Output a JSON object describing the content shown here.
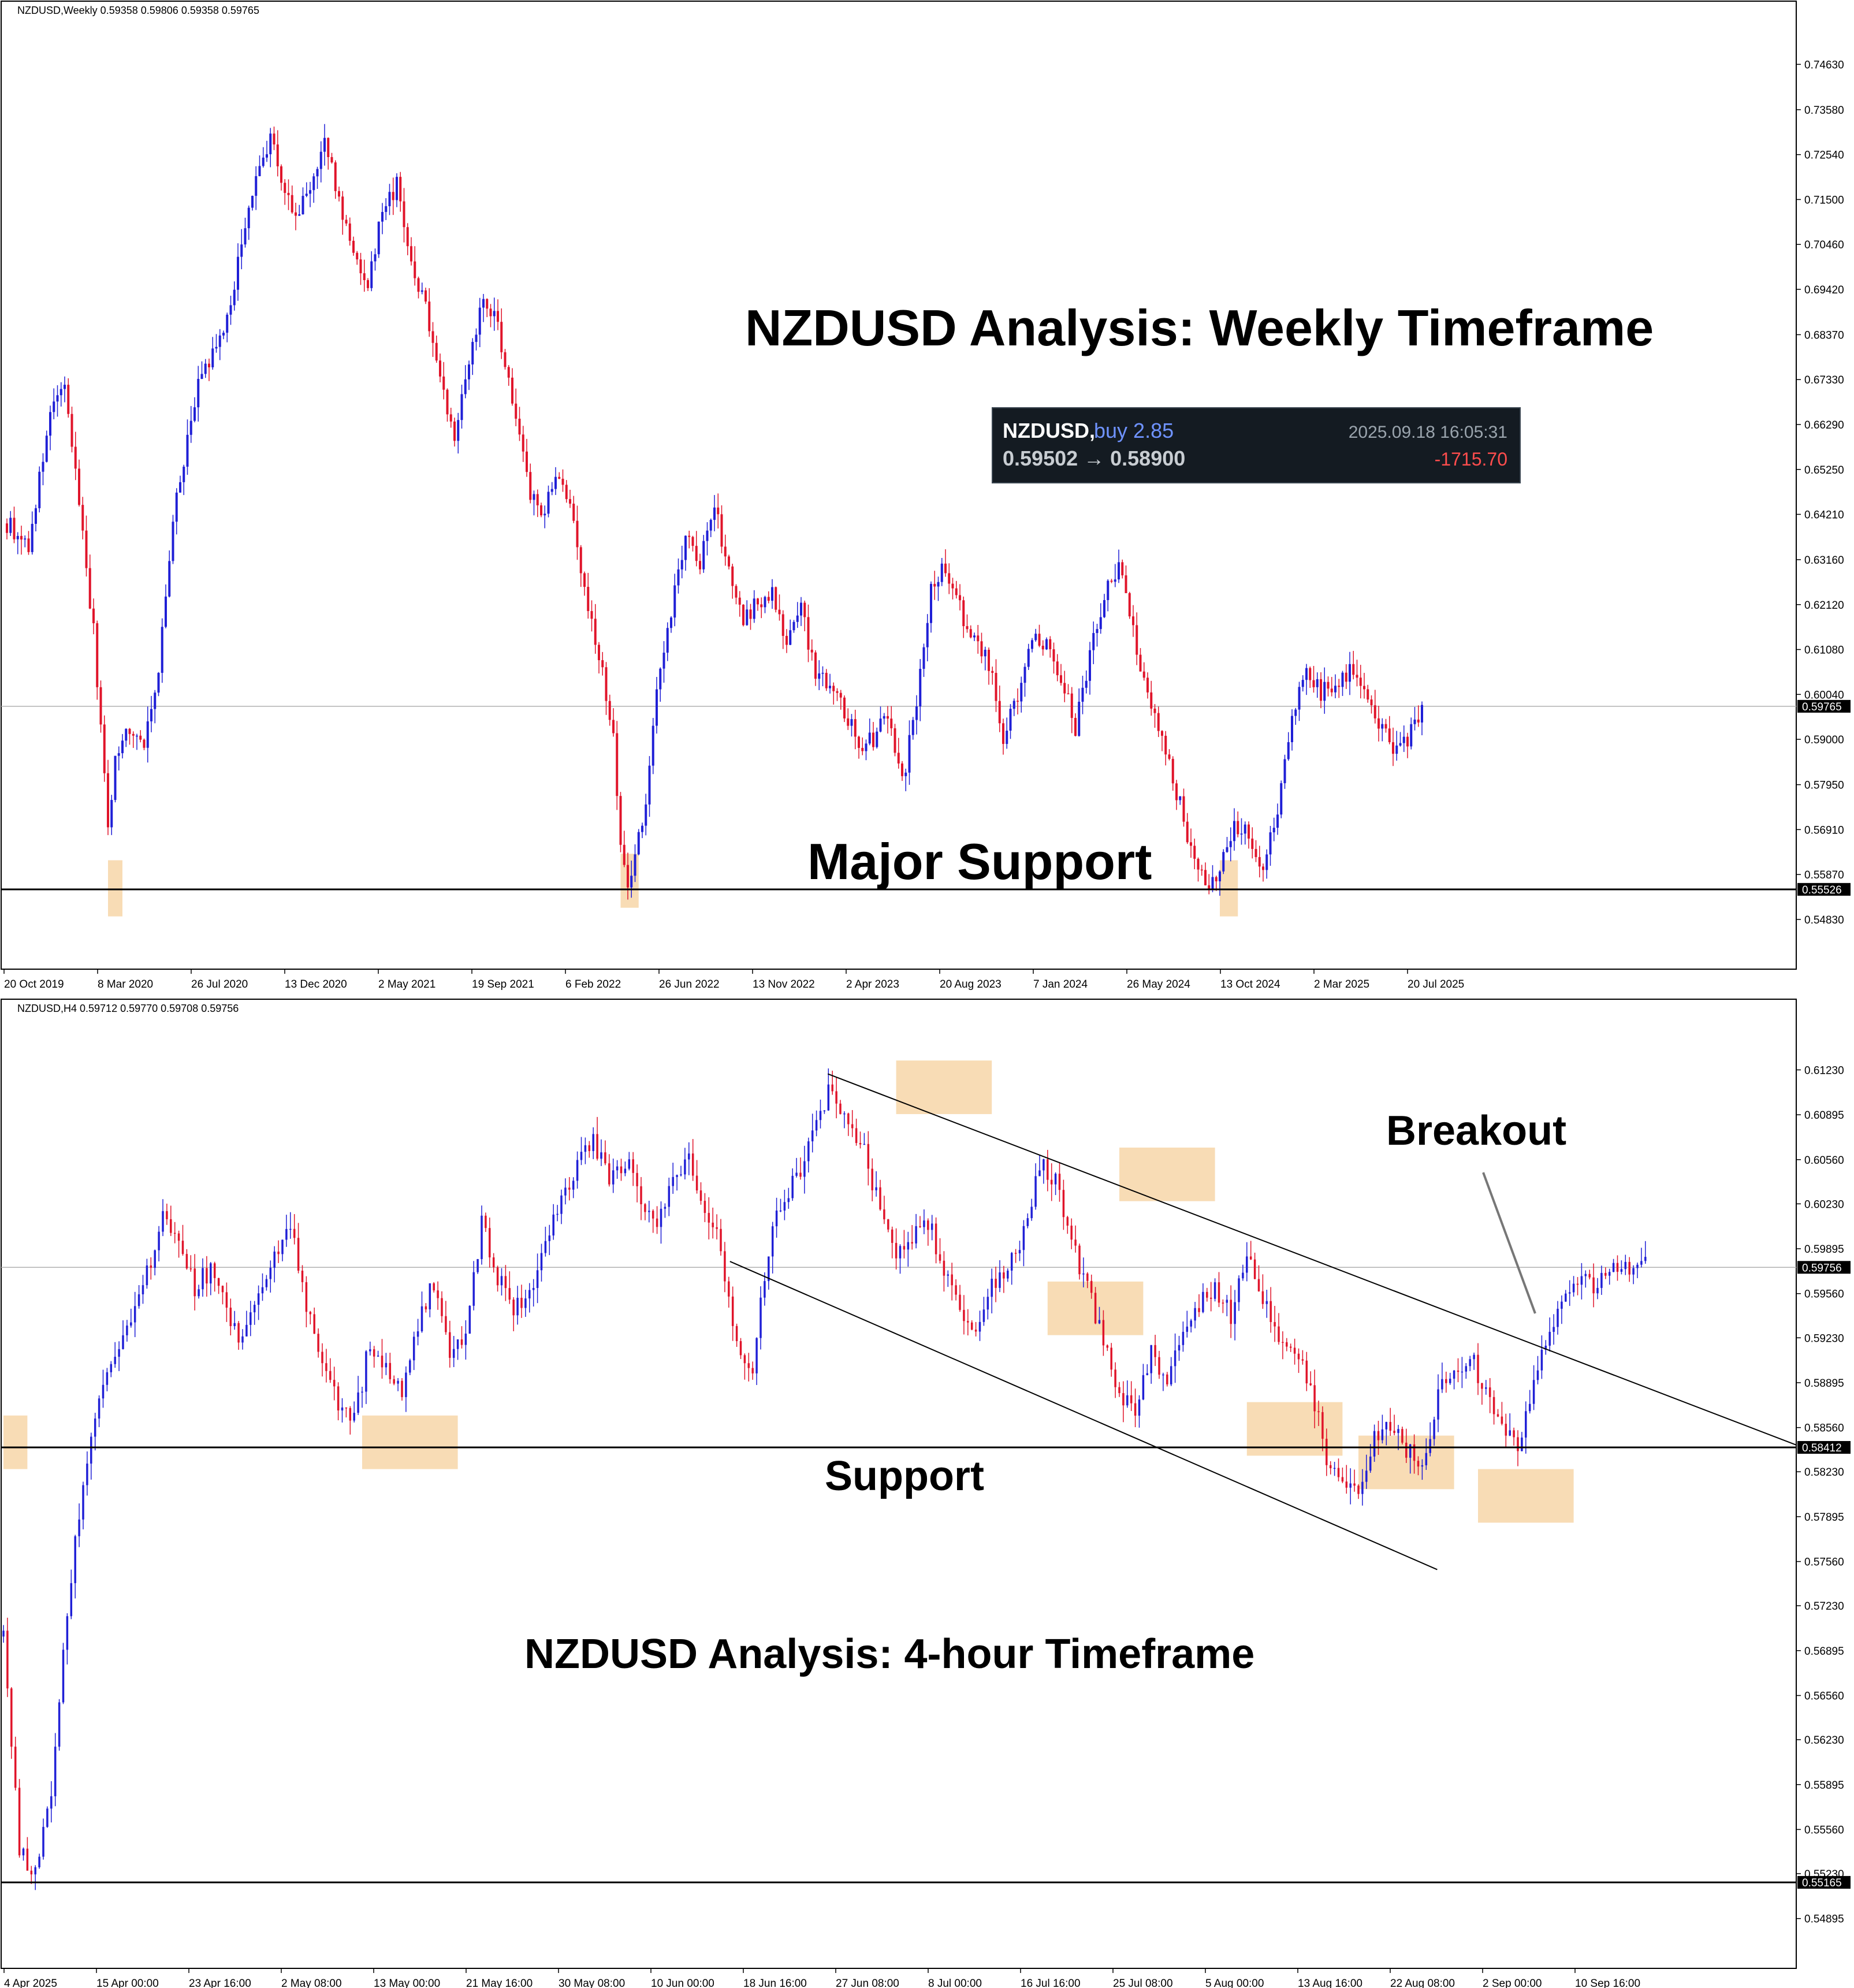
{
  "colors": {
    "bull": "#1f1fd6",
    "bear": "#e0142a",
    "highlight": "#f7d6a8",
    "line": "#000000",
    "price_line": "#b0b0b0",
    "trade_box_bg": "#141b22",
    "trade_buy": "#6f93ff",
    "trade_profit": "#ff4d4d"
  },
  "chart_data": [
    {
      "type": "candlestick",
      "symbol_header": "NZDUSD,Weekly  0.59358 0.59806 0.59358 0.59765",
      "title": "NZDUSD Analysis: Weekly Timeframe",
      "annotation": "Major Support",
      "ylim": [
        0.5432,
        0.7505
      ],
      "y_ticks": [
        "0.74630",
        "0.73580",
        "0.72540",
        "0.71500",
        "0.70460",
        "0.69420",
        "0.68370",
        "0.67330",
        "0.66290",
        "0.65250",
        "0.64210",
        "0.63160",
        "0.62120",
        "0.61080",
        "0.60040",
        "0.59000",
        "0.57950",
        "0.56910",
        "0.55870",
        "0.54830"
      ],
      "x_ticks": [
        "20 Oct 2019",
        "8 Mar 2020",
        "26 Jul 2020",
        "13 Dec 2020",
        "2 May 2021",
        "19 Sep 2021",
        "6 Feb 2022",
        "26 Jun 2022",
        "13 Nov 2022",
        "2 Apr 2023",
        "20 Aug 2023",
        "7 Jan 2024",
        "26 May 2024",
        "13 Oct 2024",
        "2 Mar 2025",
        "20 Jul 2025"
      ],
      "current_price": "0.59765",
      "support_level": "0.55526",
      "support_value": 0.55526,
      "current_value": 0.59765,
      "price_path": [
        [
          0,
          0.64
        ],
        [
          6,
          0.635
        ],
        [
          12,
          0.665
        ],
        [
          16,
          0.672
        ],
        [
          20,
          0.645
        ],
        [
          24,
          0.615
        ],
        [
          28,
          0.57
        ],
        [
          30,
          0.585
        ],
        [
          33,
          0.592
        ],
        [
          38,
          0.59
        ],
        [
          42,
          0.606
        ],
        [
          46,
          0.64
        ],
        [
          50,
          0.66
        ],
        [
          54,
          0.675
        ],
        [
          58,
          0.68
        ],
        [
          62,
          0.69
        ],
        [
          66,
          0.71
        ],
        [
          70,
          0.722
        ],
        [
          73,
          0.73
        ],
        [
          76,
          0.72
        ],
        [
          80,
          0.71
        ],
        [
          84,
          0.718
        ],
        [
          88,
          0.728
        ],
        [
          92,
          0.715
        ],
        [
          96,
          0.702
        ],
        [
          100,
          0.696
        ],
        [
          104,
          0.712
        ],
        [
          108,
          0.718
        ],
        [
          112,
          0.7
        ],
        [
          116,
          0.69
        ],
        [
          120,
          0.675
        ],
        [
          124,
          0.66
        ],
        [
          128,
          0.678
        ],
        [
          132,
          0.692
        ],
        [
          136,
          0.686
        ],
        [
          140,
          0.668
        ],
        [
          144,
          0.65
        ],
        [
          148,
          0.64
        ],
        [
          152,
          0.652
        ],
        [
          156,
          0.643
        ],
        [
          160,
          0.625
        ],
        [
          164,
          0.61
        ],
        [
          168,
          0.59
        ],
        [
          170,
          0.567
        ],
        [
          172,
          0.556
        ],
        [
          174,
          0.563
        ],
        [
          177,
          0.575
        ],
        [
          180,
          0.6
        ],
        [
          184,
          0.62
        ],
        [
          188,
          0.637
        ],
        [
          192,
          0.63
        ],
        [
          196,
          0.645
        ],
        [
          200,
          0.628
        ],
        [
          204,
          0.617
        ],
        [
          208,
          0.622
        ],
        [
          212,
          0.625
        ],
        [
          216,
          0.612
        ],
        [
          220,
          0.62
        ],
        [
          224,
          0.606
        ],
        [
          228,
          0.603
        ],
        [
          232,
          0.597
        ],
        [
          236,
          0.588
        ],
        [
          240,
          0.59
        ],
        [
          244,
          0.596
        ],
        [
          248,
          0.58
        ],
        [
          252,
          0.598
        ],
        [
          256,
          0.625
        ],
        [
          260,
          0.63
        ],
        [
          264,
          0.62
        ],
        [
          268,
          0.612
        ],
        [
          272,
          0.608
        ],
        [
          276,
          0.59
        ],
        [
          280,
          0.6
        ],
        [
          284,
          0.614
        ],
        [
          288,
          0.612
        ],
        [
          292,
          0.604
        ],
        [
          296,
          0.593
        ],
        [
          300,
          0.61
        ],
        [
          304,
          0.623
        ],
        [
          308,
          0.63
        ],
        [
          312,
          0.615
        ],
        [
          316,
          0.6
        ],
        [
          320,
          0.59
        ],
        [
          324,
          0.578
        ],
        [
          328,
          0.565
        ],
        [
          332,
          0.556
        ],
        [
          336,
          0.56
        ],
        [
          340,
          0.57
        ],
        [
          344,
          0.568
        ],
        [
          348,
          0.56
        ],
        [
          352,
          0.574
        ],
        [
          356,
          0.596
        ],
        [
          360,
          0.605
        ],
        [
          364,
          0.601
        ],
        [
          368,
          0.602
        ],
        [
          372,
          0.606
        ],
        [
          376,
          0.6
        ],
        [
          380,
          0.593
        ],
        [
          384,
          0.588
        ],
        [
          388,
          0.59
        ],
        [
          392,
          0.5976
        ]
      ],
      "highlight_zones": [
        {
          "x_idx": [
            28,
            32
          ],
          "y": [
            0.549,
            0.562
          ]
        },
        {
          "x_idx": [
            170,
            175
          ],
          "y": [
            0.551,
            0.5635
          ]
        },
        {
          "x_idx": [
            336,
            341
          ],
          "y": [
            0.549,
            0.562
          ]
        }
      ],
      "trade_box": {
        "symbol": "NZDUSD,",
        "side": "buy 2.85",
        "datetime": "2025.09.18 16:05:31",
        "prices": "0.59502 → 0.58900",
        "profit": "-1715.70"
      }
    },
    {
      "type": "candlestick",
      "symbol_header": "NZDUSD,H4  0.59712 0.59770 0.59708 0.59756",
      "title": "NZDUSD Analysis: 4-hour Timeframe",
      "annotations": [
        "Breakout",
        "Support"
      ],
      "ylim": [
        0.5473,
        0.6143
      ],
      "y_ticks": [
        "0.61230",
        "0.60895",
        "0.60560",
        "0.60230",
        "0.59895",
        "0.59560",
        "0.59230",
        "0.58895",
        "0.58560",
        "0.58230",
        "0.57895",
        "0.57560",
        "0.57230",
        "0.56895",
        "0.56560",
        "0.56230",
        "0.55895",
        "0.55560",
        "0.55230",
        "0.54895"
      ],
      "x_ticks": [
        "4 Apr 2025",
        "15 Apr 00:00",
        "23 Apr 16:00",
        "2 May 08:00",
        "13 May 00:00",
        "21 May 16:00",
        "30 May 08:00",
        "10 Jun 00:00",
        "18 Jun 16:00",
        "27 Jun 08:00",
        "8 Jul 00:00",
        "16 Jul 16:00",
        "25 Jul 08:00",
        "5 Aug 00:00",
        "13 Aug 16:00",
        "22 Aug 08:00",
        "2 Sep 00:00",
        "10 Sep 16:00"
      ],
      "current_price": "0.59756",
      "support_level": "0.58412",
      "bottom_level": "0.55165",
      "support_value": 0.58412,
      "bottom_value": 0.55165,
      "current_value": 0.59756,
      "price_path": [
        [
          0,
          0.57
        ],
        [
          4,
          0.554
        ],
        [
          8,
          0.5525
        ],
        [
          12,
          0.558
        ],
        [
          16,
          0.572
        ],
        [
          20,
          0.582
        ],
        [
          24,
          0.587
        ],
        [
          28,
          0.591
        ],
        [
          32,
          0.594
        ],
        [
          36,
          0.597
        ],
        [
          40,
          0.6015
        ],
        [
          44,
          0.599
        ],
        [
          48,
          0.596
        ],
        [
          52,
          0.5975
        ],
        [
          56,
          0.5945
        ],
        [
          60,
          0.592
        ],
        [
          64,
          0.595
        ],
        [
          68,
          0.5985
        ],
        [
          72,
          0.601
        ],
        [
          76,
          0.595
        ],
        [
          80,
          0.59
        ],
        [
          84,
          0.5875
        ],
        [
          88,
          0.586
        ],
        [
          92,
          0.592
        ],
        [
          96,
          0.59
        ],
        [
          100,
          0.588
        ],
        [
          104,
          0.5935
        ],
        [
          108,
          0.5965
        ],
        [
          112,
          0.591
        ],
        [
          116,
          0.592
        ],
        [
          120,
          0.601
        ],
        [
          124,
          0.597
        ],
        [
          128,
          0.594
        ],
        [
          132,
          0.596
        ],
        [
          136,
          0.599
        ],
        [
          140,
          0.6025
        ],
        [
          144,
          0.6055
        ],
        [
          148,
          0.607
        ],
        [
          152,
          0.6045
        ],
        [
          156,
          0.6055
        ],
        [
          160,
          0.603
        ],
        [
          164,
          0.6005
        ],
        [
          168,
          0.604
        ],
        [
          172,
          0.606
        ],
        [
          176,
          0.602
        ],
        [
          180,
          0.599
        ],
        [
          184,
          0.592
        ],
        [
          188,
          0.59
        ],
        [
          192,
          0.599
        ],
        [
          196,
          0.603
        ],
        [
          200,
          0.605
        ],
        [
          204,
          0.609
        ],
        [
          208,
          0.611
        ],
        [
          212,
          0.608
        ],
        [
          216,
          0.606
        ],
        [
          220,
          0.602
        ],
        [
          224,
          0.599
        ],
        [
          228,
          0.6
        ],
        [
          232,
          0.601
        ],
        [
          236,
          0.5975
        ],
        [
          240,
          0.595
        ],
        [
          244,
          0.592
        ],
        [
          248,
          0.596
        ],
        [
          252,
          0.598
        ],
        [
          256,
          0.6
        ],
        [
          260,
          0.6055
        ],
        [
          264,
          0.604
        ],
        [
          268,
          0.5995
        ],
        [
          272,
          0.596
        ],
        [
          276,
          0.592
        ],
        [
          280,
          0.588
        ],
        [
          284,
          0.587
        ],
        [
          288,
          0.591
        ],
        [
          292,
          0.5895
        ],
        [
          296,
          0.592
        ],
        [
          300,
          0.595
        ],
        [
          304,
          0.596
        ],
        [
          308,
          0.594
        ],
        [
          312,
          0.5985
        ],
        [
          316,
          0.595
        ],
        [
          320,
          0.592
        ],
        [
          324,
          0.5915
        ],
        [
          328,
          0.589
        ],
        [
          332,
          0.583
        ],
        [
          336,
          0.5815
        ],
        [
          340,
          0.581
        ],
        [
          344,
          0.585
        ],
        [
          348,
          0.586
        ],
        [
          352,
          0.584
        ],
        [
          356,
          0.583
        ],
        [
          360,
          0.588
        ],
        [
          364,
          0.59
        ],
        [
          368,
          0.591
        ],
        [
          372,
          0.588
        ],
        [
          376,
          0.5855
        ],
        [
          380,
          0.5845
        ],
        [
          384,
          0.589
        ],
        [
          388,
          0.5925
        ],
        [
          392,
          0.595
        ],
        [
          396,
          0.5965
        ],
        [
          400,
          0.596
        ],
        [
          404,
          0.598
        ],
        [
          408,
          0.597
        ],
        [
          412,
          0.5976
        ]
      ],
      "highlight_zones": [
        {
          "x_idx": [
            0,
            6
          ],
          "y": [
            0.5825,
            0.5865
          ]
        },
        {
          "x_idx": [
            90,
            114
          ],
          "y": [
            0.5825,
            0.5865
          ]
        },
        {
          "x_idx": [
            224,
            248
          ],
          "y": [
            0.609,
            0.613
          ]
        },
        {
          "x_idx": [
            262,
            286
          ],
          "y": [
            0.5925,
            0.5965
          ]
        },
        {
          "x_idx": [
            280,
            304
          ],
          "y": [
            0.6025,
            0.6065
          ]
        },
        {
          "x_idx": [
            312,
            336
          ],
          "y": [
            0.5835,
            0.5875
          ]
        },
        {
          "x_idx": [
            340,
            364
          ],
          "y": [
            0.581,
            0.585
          ]
        },
        {
          "x_idx": [
            370,
            394
          ],
          "y": [
            0.5785,
            0.5825
          ]
        }
      ],
      "channel_upper": [
        [
          0.612,
          0.617
        ],
        [
          1.0,
          0.5843
        ]
      ],
      "channel_lower": [
        [
          0.598,
          0.406
        ],
        [
          0.575,
          0.8
        ]
      ]
    }
  ]
}
